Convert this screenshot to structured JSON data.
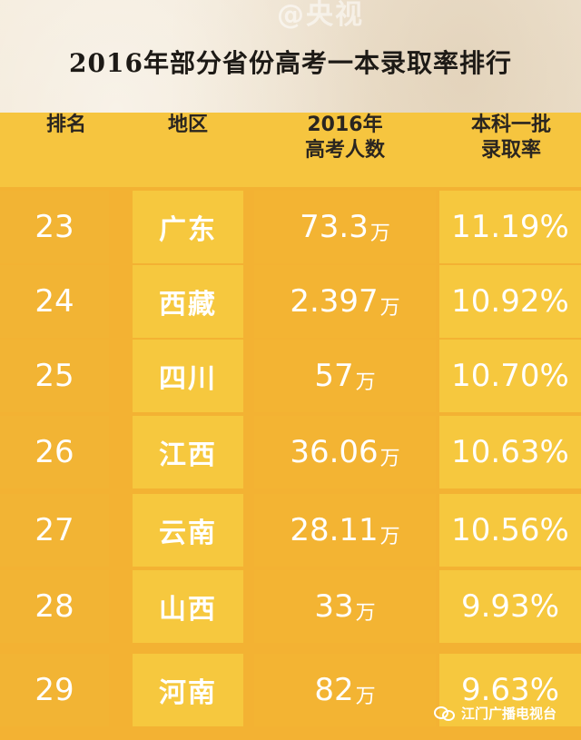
{
  "watermark_text": "@央视",
  "title": "2016年部分省份高考一本录取率排行",
  "headers": {
    "rank": "排名",
    "region": "地区",
    "count_line1": "2016年",
    "count_line2": "高考人数",
    "rate_line1": "本科一批",
    "rate_line2": "录取率"
  },
  "unit": "万",
  "rows": [
    {
      "rank": "23",
      "region": "广东",
      "count": "73.3",
      "rate": "11.19%"
    },
    {
      "rank": "24",
      "region": "西藏",
      "count": "2.397",
      "rate": "10.92%"
    },
    {
      "rank": "25",
      "region": "四川",
      "count": "57",
      "rate": "10.70%"
    },
    {
      "rank": "26",
      "region": "江西",
      "count": "36.06",
      "rate": "10.63%"
    },
    {
      "rank": "27",
      "region": "云南",
      "count": "28.11",
      "rate": "10.56%"
    },
    {
      "rank": "28",
      "region": "山西",
      "count": "33",
      "rate": "9.93%"
    },
    {
      "rank": "29",
      "region": "河南",
      "count": "82",
      "rate": "9.63%"
    }
  ],
  "footer_logo_text": "江门广播电视台",
  "colors": {
    "header_bg": "#f6c53f",
    "band_dark": "#f2b434",
    "band_light": "#f6c83e",
    "row_divider": "#e7dcc8",
    "text_white": "#ffffff",
    "text_dark": "#1d1a16"
  }
}
